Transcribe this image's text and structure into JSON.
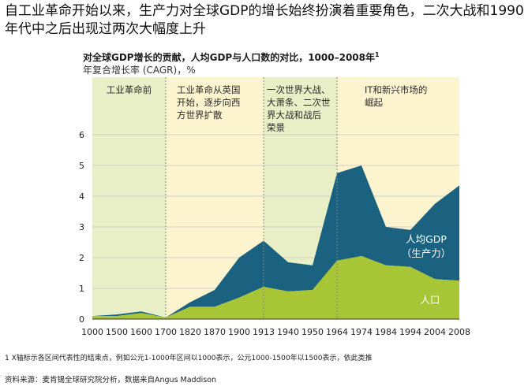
{
  "headline": "自工业革命开始以来，生产力对全球GDP的增长始终扮演着重要角色，二次大战和1990年代中之后出现过两次大幅度上升",
  "chart_data": {
    "type": "area",
    "title": "对全球GDP增长的贡献，人均GDP与人口数的对比，1000–2008年",
    "title_sup": "1",
    "ylabel": "年复合增长率 (CAGR)，%",
    "ylim": [
      0,
      6
    ],
    "yticks": [
      0,
      1,
      2,
      3,
      4,
      5,
      6
    ],
    "grid": true,
    "categories": [
      "1000",
      "1500",
      "1600",
      "1700",
      "1820",
      "1870",
      "1900",
      "1913",
      "1940",
      "1950",
      "1964",
      "1974",
      "1984",
      "1994",
      "2004",
      "2008"
    ],
    "series": [
      {
        "name": "人口",
        "color": "#a8c536",
        "values": [
          0.1,
          0.1,
          0.2,
          0.05,
          0.4,
          0.4,
          0.7,
          1.05,
          0.9,
          0.95,
          1.9,
          2.05,
          1.75,
          1.7,
          1.3,
          1.25
        ]
      },
      {
        "name": "人均GDP",
        "name_sub": "（生产力）",
        "color": "#1a6280",
        "values": [
          0.0,
          0.05,
          0.05,
          0.0,
          0.15,
          0.55,
          1.3,
          1.5,
          0.95,
          0.8,
          2.85,
          2.95,
          1.25,
          1.2,
          2.45,
          3.1
        ]
      }
    ],
    "eras": [
      {
        "label": "工业革命前",
        "start": 0,
        "end": 3,
        "color": "#e8eec5"
      },
      {
        "label": "工业革命从英国开始，逐步向西方世界扩散",
        "start": 3,
        "end": 7,
        "color": "#fcf4cf"
      },
      {
        "label": "一次世界大战、大萧条、二次世界大战和战后荣景",
        "start": 7,
        "end": 10,
        "color": "#e8eec5"
      },
      {
        "label": "IT和新兴市场的崛起",
        "start": 10,
        "end": 15,
        "color": "#fcf4cf"
      }
    ]
  },
  "footnote": "1 X轴标示各区间代表性的结束点，例如公元1-1000年区间以1000表示，公元1000-1500年以1500表示，依此类推",
  "source": "资料来源：麦肯锡全球研究院分析，数据来自Angus Maddison"
}
